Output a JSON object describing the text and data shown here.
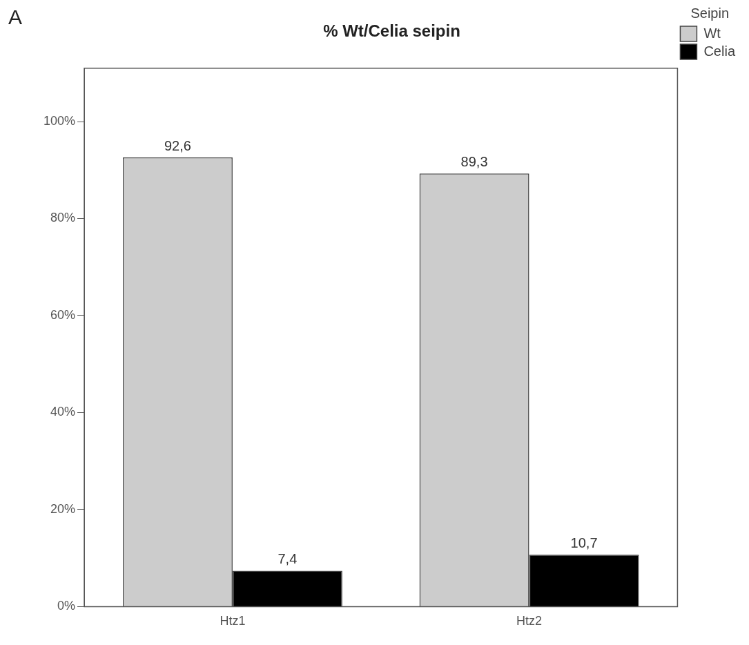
{
  "chart_data": {
    "type": "bar",
    "title": "% Wt/Celia seipin",
    "legend_title": "Seipin",
    "legend": "top right",
    "annotations": [
      "A"
    ],
    "categories": [
      "Htz1",
      "Htz2"
    ],
    "series": [
      {
        "name": "Wt",
        "color": "#cccccc",
        "values": [
          92.6,
          89.3
        ],
        "value_labels": [
          "92,6",
          "89,3"
        ]
      },
      {
        "name": "Celia",
        "color": "#000000",
        "values": [
          7.4,
          10.7
        ],
        "value_labels": [
          "7,4",
          "10,7"
        ]
      }
    ],
    "ylim": [
      0,
      111
    ],
    "yticks": [
      {
        "value": 0,
        "label": "0%"
      },
      {
        "value": 20,
        "label": "20%"
      },
      {
        "value": 40,
        "label": "40%"
      },
      {
        "value": 60,
        "label": "60%"
      },
      {
        "value": 80,
        "label": "80%"
      },
      {
        "value": 100,
        "label": "100%"
      }
    ],
    "grid": false
  }
}
